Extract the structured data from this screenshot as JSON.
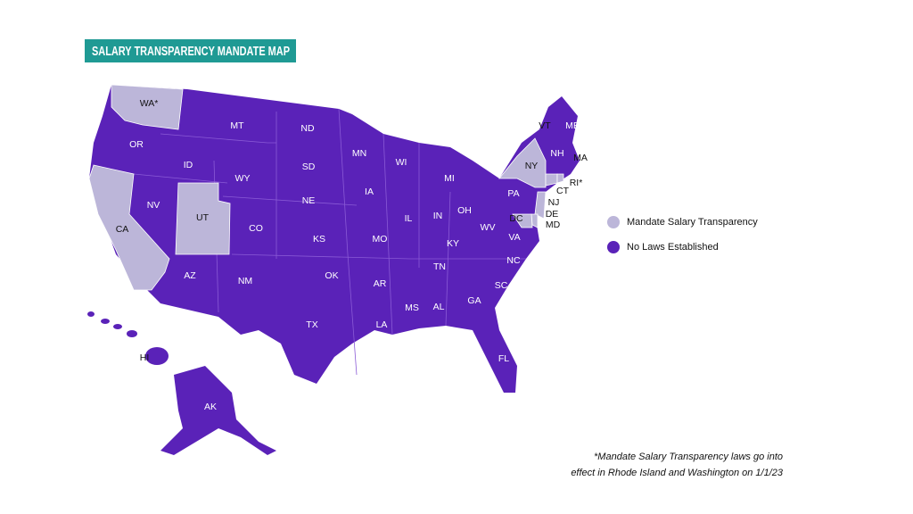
{
  "title": "SALARY TRANSPARENCY MANDATE MAP",
  "legend": [
    {
      "label": "Mandate Salary Transparency",
      "color": "#bcb6d9",
      "states": [
        "WA*",
        "CA",
        "UT",
        "NY",
        "CT",
        "RI*",
        "NJ",
        "DE",
        "MD",
        "DC"
      ]
    },
    {
      "label": "No Laws Established",
      "color": "#5a22b8",
      "states": [
        "OR",
        "ID",
        "MT",
        "WY",
        "NV",
        "CO",
        "AZ",
        "NM",
        "ND",
        "SD",
        "NE",
        "KS",
        "OK",
        "TX",
        "MN",
        "IA",
        "MO",
        "AR",
        "LA",
        "WI",
        "IL",
        "MI",
        "IN",
        "OH",
        "KY",
        "TN",
        "MS",
        "AL",
        "GA",
        "FL",
        "SC",
        "NC",
        "VA",
        "WV",
        "PA",
        "VT",
        "NH",
        "ME",
        "MA",
        "HI",
        "AK"
      ]
    }
  ],
  "footnote": [
    "*Mandate Salary Transparency laws go into",
    "effect in Rhode Island and Washington on 1/1/23"
  ]
}
